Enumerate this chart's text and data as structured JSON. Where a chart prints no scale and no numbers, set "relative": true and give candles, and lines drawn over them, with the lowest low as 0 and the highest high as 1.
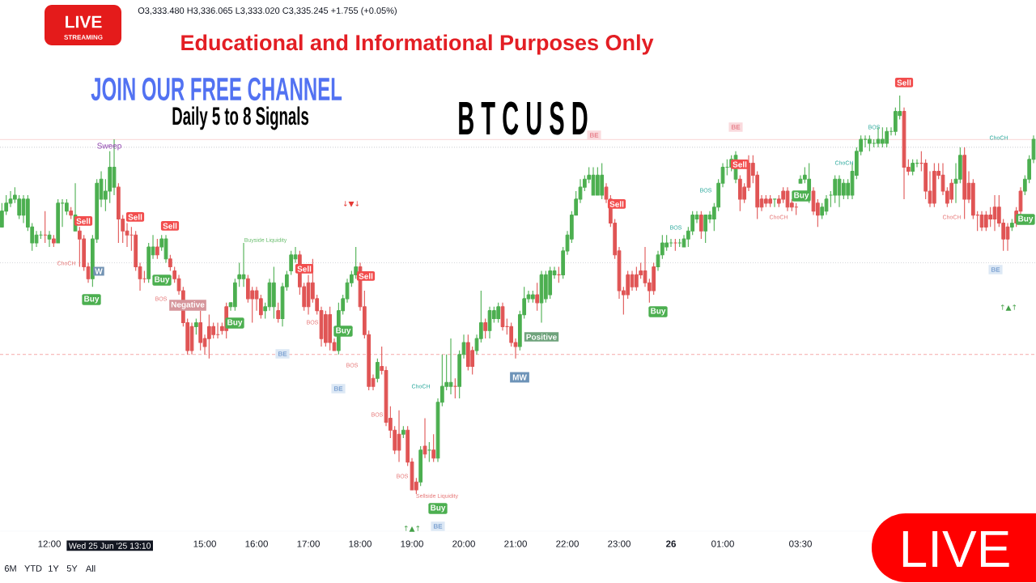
{
  "chart_data": {
    "type": "candlestick",
    "title": "BTCUSD",
    "relative": true,
    "categories": [
      null,
      null,
      null,
      null,
      null,
      null,
      null,
      null,
      null,
      null,
      null,
      "12:00",
      null,
      null,
      null,
      null,
      null,
      null,
      null,
      null,
      null,
      null,
      null,
      null,
      null,
      "Wed 25 Jun '25 13:10",
      null,
      null,
      null,
      null,
      null,
      null,
      null,
      null,
      null,
      null,
      null,
      null,
      null,
      null,
      null,
      null,
      null,
      null,
      null,
      null,
      null,
      "15:00",
      null,
      null,
      null,
      null,
      null,
      null,
      null,
      null,
      null,
      null,
      null,
      "16:00",
      null,
      null,
      null,
      null,
      null,
      null,
      null,
      null,
      null,
      null,
      null,
      "17:00",
      null,
      null,
      null,
      null,
      null,
      null,
      null,
      null,
      null,
      null,
      null,
      "18:00",
      null,
      null,
      null,
      null,
      null,
      null,
      null,
      null,
      null,
      null,
      null,
      "19:00",
      null,
      null,
      null,
      null,
      null,
      null,
      null,
      null,
      null,
      null,
      null,
      "20:00",
      null,
      null,
      null,
      null,
      null,
      null,
      null,
      null,
      null,
      null,
      null,
      "21:00",
      null,
      null,
      null,
      null,
      null,
      null,
      null,
      null,
      null,
      null,
      null,
      "22:00",
      null,
      null,
      null,
      null,
      null,
      null,
      null,
      null,
      null,
      null,
      null,
      "23:00",
      null,
      null,
      null,
      null,
      null,
      null,
      null,
      null,
      null,
      null,
      null,
      "26",
      null,
      null,
      null,
      null,
      null,
      null,
      null,
      null,
      null,
      null,
      null,
      "01:00",
      null,
      null,
      null,
      null,
      null,
      null,
      null,
      null,
      null,
      null,
      null,
      null,
      null,
      null,
      null,
      null,
      null,
      "03:30",
      null,
      null,
      null,
      null,
      null,
      null,
      null,
      null,
      null,
      null,
      null,
      null,
      null,
      null,
      null,
      null,
      null,
      null,
      null,
      null,
      null,
      null,
      null,
      null,
      null,
      null,
      null,
      null,
      null,
      null,
      null,
      null,
      null,
      null,
      null,
      null,
      null,
      null,
      null,
      null,
      null,
      null,
      null,
      null,
      null,
      null,
      null,
      null,
      null,
      null,
      null,
      null,
      null,
      null
    ],
    "ohlc": [
      [
        0.67,
        0.73,
        0.67,
        0.71
      ],
      [
        0.71,
        0.75,
        0.7,
        0.73
      ],
      [
        0.73,
        0.76,
        0.72,
        0.74
      ],
      [
        0.74,
        0.77,
        0.73,
        0.75
      ],
      [
        0.7,
        0.75,
        0.69,
        0.74
      ],
      [
        0.7,
        0.75,
        0.68,
        0.74
      ],
      [
        0.67,
        0.75,
        0.66,
        0.74
      ],
      [
        0.63,
        0.68,
        0.61,
        0.67
      ],
      [
        0.63,
        0.66,
        0.62,
        0.65
      ],
      [
        0.65,
        0.66,
        0.64,
        0.65
      ],
      [
        0.65,
        0.71,
        0.63,
        0.65
      ],
      [
        0.64,
        0.66,
        0.62,
        0.65
      ],
      [
        0.64,
        0.65,
        0.62,
        0.63
      ],
      [
        0.63,
        0.74,
        0.63,
        0.73
      ],
      [
        0.73,
        0.74,
        0.67,
        0.73
      ],
      [
        0.71,
        0.74,
        0.7,
        0.73
      ],
      [
        0.71,
        0.72,
        0.69,
        0.7
      ],
      [
        0.66,
        0.78,
        0.66,
        0.7
      ],
      [
        0.66,
        0.67,
        0.57,
        0.64
      ],
      [
        0.64,
        0.65,
        0.56,
        0.57
      ],
      [
        0.57,
        0.58,
        0.53,
        0.54
      ],
      [
        0.54,
        0.65,
        0.52,
        0.64
      ],
      [
        0.64,
        0.79,
        0.63,
        0.78
      ],
      [
        0.74,
        0.81,
        0.72,
        0.79
      ],
      [
        0.74,
        0.79,
        0.71,
        0.76
      ],
      [
        0.76,
        0.86,
        0.73,
        0.82
      ],
      [
        0.77,
        0.89,
        0.75,
        0.82
      ],
      [
        0.77,
        0.78,
        0.63,
        0.69
      ],
      [
        0.69,
        0.7,
        0.63,
        0.66
      ],
      [
        0.66,
        0.68,
        0.62,
        0.65
      ],
      [
        0.65,
        0.67,
        0.61,
        0.65
      ],
      [
        0.65,
        0.66,
        0.56,
        0.57
      ],
      [
        0.57,
        0.58,
        0.51,
        0.54
      ],
      [
        0.54,
        0.56,
        0.53,
        0.54
      ],
      [
        0.54,
        0.63,
        0.53,
        0.62
      ],
      [
        0.6,
        0.65,
        0.59,
        0.62
      ],
      [
        0.62,
        0.64,
        0.59,
        0.6
      ],
      [
        0.62,
        0.65,
        0.61,
        0.64
      ],
      [
        0.59,
        0.65,
        0.58,
        0.64
      ],
      [
        0.59,
        0.6,
        0.56,
        0.57
      ],
      [
        0.56,
        0.57,
        0.53,
        0.54
      ],
      [
        0.54,
        0.55,
        0.5,
        0.51
      ],
      [
        0.51,
        0.52,
        0.42,
        0.43
      ],
      [
        0.43,
        0.44,
        0.35,
        0.36
      ],
      [
        0.42,
        0.43,
        0.35,
        0.36
      ],
      [
        0.42,
        0.44,
        0.4,
        0.43
      ],
      [
        0.43,
        0.46,
        0.36,
        0.38
      ],
      [
        0.39,
        0.4,
        0.35,
        0.37
      ],
      [
        0.42,
        0.45,
        0.34,
        0.39
      ],
      [
        0.42,
        0.43,
        0.39,
        0.4
      ],
      [
        0.4,
        0.43,
        0.39,
        0.4
      ],
      [
        0.42,
        0.43,
        0.4,
        0.41
      ],
      [
        0.47,
        0.48,
        0.39,
        0.41
      ],
      [
        0.47,
        0.48,
        0.46,
        0.48
      ],
      [
        0.47,
        0.54,
        0.46,
        0.53
      ],
      [
        0.54,
        0.58,
        0.52,
        0.55
      ],
      [
        0.54,
        0.63,
        0.52,
        0.55
      ],
      [
        0.54,
        0.55,
        0.48,
        0.49
      ],
      [
        0.51,
        0.52,
        0.43,
        0.49
      ],
      [
        0.51,
        0.52,
        0.46,
        0.49
      ],
      [
        0.49,
        0.5,
        0.44,
        0.45
      ],
      [
        0.46,
        0.48,
        0.44,
        0.47
      ],
      [
        0.47,
        0.54,
        0.46,
        0.53
      ],
      [
        0.47,
        0.57,
        0.44,
        0.53
      ],
      [
        0.46,
        0.48,
        0.43,
        0.44
      ],
      [
        0.44,
        0.53,
        0.42,
        0.52
      ],
      [
        0.52,
        0.56,
        0.51,
        0.55
      ],
      [
        0.56,
        0.61,
        0.55,
        0.6
      ],
      [
        0.59,
        0.62,
        0.58,
        0.6
      ],
      [
        0.6,
        0.61,
        0.5,
        0.52
      ],
      [
        0.52,
        0.53,
        0.46,
        0.47
      ],
      [
        0.53,
        0.55,
        0.45,
        0.47
      ],
      [
        0.53,
        0.59,
        0.48,
        0.49
      ],
      [
        0.49,
        0.5,
        0.45,
        0.46
      ],
      [
        0.46,
        0.47,
        0.37,
        0.39
      ],
      [
        0.45,
        0.46,
        0.37,
        0.38
      ],
      [
        0.45,
        0.47,
        0.36,
        0.38
      ],
      [
        0.38,
        0.39,
        0.36,
        0.36
      ],
      [
        0.36,
        0.48,
        0.35,
        0.46
      ],
      [
        0.46,
        0.5,
        0.45,
        0.49
      ],
      [
        0.49,
        0.54,
        0.48,
        0.53
      ],
      [
        0.53,
        0.56,
        0.52,
        0.55
      ],
      [
        0.55,
        0.62,
        0.54,
        0.57
      ],
      [
        0.57,
        0.58,
        0.46,
        0.47
      ],
      [
        0.47,
        0.51,
        0.39,
        0.4
      ],
      [
        0.4,
        0.41,
        0.26,
        0.27
      ],
      [
        0.29,
        0.3,
        0.26,
        0.27
      ],
      [
        0.29,
        0.34,
        0.28,
        0.33
      ],
      [
        0.32,
        0.37,
        0.3,
        0.31
      ],
      [
        0.31,
        0.32,
        0.17,
        0.18
      ],
      [
        0.19,
        0.22,
        0.14,
        0.16
      ],
      [
        0.16,
        0.17,
        0.1,
        0.11
      ],
      [
        0.15,
        0.21,
        0.08,
        0.11
      ],
      [
        0.15,
        0.17,
        0.14,
        0.16
      ],
      [
        0.16,
        0.17,
        0.07,
        0.08
      ],
      [
        0.08,
        0.09,
        0.01,
        0.01
      ],
      [
        0.03,
        0.04,
        0,
        0.01
      ],
      [
        0.03,
        0.12,
        0.02,
        0.11
      ],
      [
        0.12,
        0.19,
        0.09,
        0.1
      ],
      [
        0.11,
        0.13,
        0.08,
        0.11
      ],
      [
        0.11,
        0.15,
        0.08,
        0.09
      ],
      [
        0.09,
        0.24,
        0.08,
        0.23
      ],
      [
        0.23,
        0.35,
        0.22,
        0.27
      ],
      [
        0.27,
        0.35,
        0.26,
        0.28
      ],
      [
        0.27,
        0.39,
        0.25,
        0.28
      ],
      [
        0.27,
        0.29,
        0.24,
        0.27
      ],
      [
        0.27,
        0.36,
        0.24,
        0.35
      ],
      [
        0.35,
        0.4,
        0.34,
        0.38
      ],
      [
        0.38,
        0.4,
        0.31,
        0.32
      ],
      [
        0.36,
        0.37,
        0.3,
        0.32
      ],
      [
        0.36,
        0.4,
        0.35,
        0.39
      ],
      [
        0.39,
        0.51,
        0.38,
        0.43
      ],
      [
        0.43,
        0.44,
        0.39,
        0.41
      ],
      [
        0.41,
        0.47,
        0.39,
        0.46
      ],
      [
        0.44,
        0.47,
        0.43,
        0.46
      ],
      [
        0.44,
        0.48,
        0.43,
        0.47
      ],
      [
        0.47,
        0.48,
        0.41,
        0.42
      ],
      [
        0.42,
        0.44,
        0.4,
        0.42
      ],
      [
        0.42,
        0.43,
        0.37,
        0.38
      ],
      [
        0.38,
        0.39,
        0.34,
        0.37
      ],
      [
        0.37,
        0.46,
        0.36,
        0.45
      ],
      [
        0.45,
        0.52,
        0.44,
        0.49
      ],
      [
        0.49,
        0.51,
        0.48,
        0.5
      ],
      [
        0.49,
        0.51,
        0.48,
        0.5
      ],
      [
        0.5,
        0.53,
        0.46,
        0.48
      ],
      [
        0.48,
        0.56,
        0.43,
        0.55
      ],
      [
        0.49,
        0.56,
        0.48,
        0.55
      ],
      [
        0.5,
        0.57,
        0.49,
        0.56
      ],
      [
        0.55,
        0.57,
        0.54,
        0.56
      ],
      [
        0.55,
        0.57,
        0.53,
        0.55
      ],
      [
        0.55,
        0.62,
        0.54,
        0.61
      ],
      [
        0.61,
        0.66,
        0.6,
        0.65
      ],
      [
        0.64,
        0.71,
        0.63,
        0.7
      ],
      [
        0.7,
        0.76,
        0.7,
        0.74
      ],
      [
        0.74,
        0.79,
        0.73,
        0.77
      ],
      [
        0.77,
        0.8,
        0.76,
        0.79
      ],
      [
        0.79,
        0.82,
        0.78,
        0.8
      ],
      [
        0.75,
        0.82,
        0.75,
        0.8
      ],
      [
        0.75,
        0.82,
        0.75,
        0.8
      ],
      [
        0.75,
        0.83,
        0.74,
        0.8
      ],
      [
        0.77,
        0.78,
        0.73,
        0.74
      ],
      [
        0.74,
        0.75,
        0.67,
        0.68
      ],
      [
        0.68,
        0.69,
        0.59,
        0.6
      ],
      [
        0.61,
        0.62,
        0.49,
        0.51
      ],
      [
        0.51,
        0.52,
        0.45,
        0.5
      ],
      [
        0.55,
        0.56,
        0.49,
        0.5
      ],
      [
        0.55,
        0.56,
        0.51,
        0.52
      ],
      [
        0.55,
        0.57,
        0.51,
        0.52
      ],
      [
        0.56,
        0.58,
        0.54,
        0.55
      ],
      [
        0.56,
        0.62,
        0.52,
        0.53
      ],
      [
        0.53,
        0.54,
        0.48,
        0.51
      ],
      [
        0.57,
        0.58,
        0.5,
        0.51
      ],
      [
        0.57,
        0.61,
        0.56,
        0.6
      ],
      [
        0.6,
        0.65,
        0.59,
        0.63
      ],
      [
        0.62,
        0.65,
        0.61,
        0.63
      ],
      [
        0.63,
        0.64,
        0.62,
        0.63
      ],
      [
        0.63,
        0.64,
        0.61,
        0.63
      ],
      [
        0.63,
        0.64,
        0.62,
        0.63
      ],
      [
        0.62,
        0.65,
        0.62,
        0.64
      ],
      [
        0.64,
        0.67,
        0.62,
        0.66
      ],
      [
        0.66,
        0.71,
        0.65,
        0.7
      ],
      [
        0.69,
        0.71,
        0.68,
        0.7
      ],
      [
        0.7,
        0.71,
        0.64,
        0.66
      ],
      [
        0.66,
        0.7,
        0.63,
        0.7
      ],
      [
        0.69,
        0.71,
        0.68,
        0.7
      ],
      [
        0.69,
        0.73,
        0.66,
        0.72
      ],
      [
        0.72,
        0.79,
        0.71,
        0.78
      ],
      [
        0.78,
        0.83,
        0.77,
        0.82
      ],
      [
        0.82,
        0.84,
        0.8,
        0.82
      ],
      [
        0.82,
        0.85,
        0.81,
        0.84
      ],
      [
        0.79,
        0.86,
        0.78,
        0.85
      ],
      [
        0.79,
        0.8,
        0.71,
        0.74
      ],
      [
        0.77,
        0.78,
        0.73,
        0.74
      ],
      [
        0.83,
        0.85,
        0.76,
        0.77
      ],
      [
        0.83,
        0.85,
        0.78,
        0.8
      ],
      [
        0.8,
        0.81,
        0.69,
        0.72
      ],
      [
        0.74,
        0.75,
        0.71,
        0.72
      ],
      [
        0.74,
        0.75,
        0.72,
        0.73
      ],
      [
        0.74,
        0.75,
        0.72,
        0.73
      ],
      [
        0.74,
        0.74,
        0.72,
        0.74
      ],
      [
        0.74,
        0.75,
        0.72,
        0.73
      ],
      [
        0.76,
        0.77,
        0.73,
        0.74
      ],
      [
        0.76,
        0.77,
        0.71,
        0.72
      ],
      [
        0.73,
        0.74,
        0.71,
        0.72
      ],
      [
        0.72,
        0.73,
        0.7,
        0.72
      ],
      [
        0.78,
        0.8,
        0.78,
        0.79
      ],
      [
        0.79,
        0.82,
        0.78,
        0.8
      ],
      [
        0.76,
        0.83,
        0.73,
        0.79
      ],
      [
        0.76,
        0.77,
        0.7,
        0.71
      ],
      [
        0.73,
        0.74,
        0.67,
        0.7
      ],
      [
        0.7,
        0.73,
        0.69,
        0.72
      ],
      [
        0.71,
        0.75,
        0.7,
        0.74
      ],
      [
        0.75,
        0.76,
        0.72,
        0.75
      ],
      [
        0.75,
        0.8,
        0.73,
        0.79
      ],
      [
        0.75,
        0.8,
        0.72,
        0.79
      ],
      [
        0.75,
        0.79,
        0.74,
        0.78
      ],
      [
        0.75,
        0.79,
        0.74,
        0.78
      ],
      [
        0.75,
        0.83,
        0.74,
        0.81
      ],
      [
        0.8,
        0.87,
        0.79,
        0.86
      ],
      [
        0.86,
        0.9,
        0.85,
        0.89
      ],
      [
        0.89,
        0.9,
        0.87,
        0.89
      ],
      [
        0.88,
        0.9,
        0.86,
        0.89
      ],
      [
        0.88,
        0.89,
        0.87,
        0.88
      ],
      [
        0.88,
        0.92,
        0.87,
        0.89
      ],
      [
        0.88,
        0.92,
        0.87,
        0.89
      ],
      [
        0.88,
        0.92,
        0.87,
        0.91
      ],
      [
        0.91,
        0.92,
        0.9,
        0.91
      ],
      [
        0.91,
        0.97,
        0.9,
        0.96
      ],
      [
        0.95,
        1,
        0.94,
        0.96
      ],
      [
        0.96,
        0.97,
        0.74,
        0.82
      ],
      [
        0.82,
        0.84,
        0.8,
        0.81
      ],
      [
        0.81,
        0.84,
        0.8,
        0.83
      ],
      [
        0.83,
        0.84,
        0.82,
        0.83
      ],
      [
        0.83,
        0.86,
        0.81,
        0.83
      ],
      [
        0.83,
        0.84,
        0.74,
        0.76
      ],
      [
        0.76,
        0.81,
        0.72,
        0.73
      ],
      [
        0.81,
        0.83,
        0.72,
        0.73
      ],
      [
        0.81,
        0.83,
        0.79,
        0.8
      ],
      [
        0.8,
        0.83,
        0.75,
        0.76
      ],
      [
        0.76,
        0.77,
        0.72,
        0.73
      ],
      [
        0.78,
        0.79,
        0.73,
        0.74
      ],
      [
        0.78,
        0.83,
        0.73,
        0.79
      ],
      [
        0.79,
        0.87,
        0.78,
        0.85
      ],
      [
        0.85,
        0.87,
        0.69,
        0.74
      ],
      [
        0.78,
        0.81,
        0.73,
        0.74
      ],
      [
        0.78,
        0.79,
        0.69,
        0.7
      ],
      [
        0.7,
        0.71,
        0.66,
        0.7
      ],
      [
        0.7,
        0.71,
        0.66,
        0.67
      ],
      [
        0.7,
        0.71,
        0.66,
        0.67
      ],
      [
        0.7,
        0.72,
        0.67,
        0.69
      ],
      [
        0.72,
        0.75,
        0.66,
        0.69
      ],
      [
        0.72,
        0.75,
        0.67,
        0.68
      ],
      [
        0.68,
        0.69,
        0.61,
        0.64
      ],
      [
        0.67,
        0.68,
        0.61,
        0.64
      ],
      [
        0.67,
        0.69,
        0.66,
        0.68
      ],
      [
        0.71,
        0.72,
        0.67,
        0.68
      ],
      [
        0.76,
        0.77,
        0.7,
        0.71
      ],
      [
        0.76,
        0.8,
        0.75,
        0.79
      ],
      [
        0.79,
        0.85,
        0.78,
        0.84
      ],
      [
        0.84,
        0.9,
        0.83,
        0.89
      ]
    ],
    "colors": [
      "#4caf50",
      "#4caf50",
      "#4caf50",
      "#4caf50",
      "#4caf50",
      "#4caf50",
      "#4caf50",
      "#4caf50",
      "#4caf50",
      "#4caf50",
      "#e05555",
      "#4caf50",
      "#e05555",
      "#4caf50",
      "#4caf50",
      "#4caf50",
      "#e05555",
      "#4caf50",
      "#e05555",
      "#e05555",
      "#e05555",
      "#4caf50",
      "#4caf50",
      "#4caf50",
      "#4caf50",
      "#4caf50",
      "#4caf50",
      "#e05555",
      "#e05555",
      "#e05555",
      "#e05555",
      "#e05555",
      "#e05555",
      "#e05555",
      "#4caf50",
      "#4caf50",
      "#e05555",
      "#4caf50",
      "#4caf50",
      "#e05555",
      "#e05555",
      "#e05555",
      "#e05555",
      "#e05555",
      "#e05555",
      "#4caf50",
      "#e05555",
      "#e05555",
      "#e05555",
      "#e05555",
      "#e05555",
      "#e05555",
      "#e05555",
      "#4caf50",
      "#4caf50",
      "#4caf50",
      "#4caf50",
      "#e05555",
      "#e05555",
      "#e05555",
      "#e05555",
      "#4caf50",
      "#4caf50",
      "#4caf50",
      "#e05555",
      "#4caf50",
      "#4caf50",
      "#4caf50",
      "#4caf50",
      "#e05555",
      "#e05555",
      "#e05555",
      "#e05555",
      "#e05555",
      "#e05555",
      "#e05555",
      "#e05555",
      "#e05555",
      "#4caf50",
      "#4caf50",
      "#4caf50",
      "#4caf50",
      "#4caf50",
      "#e05555",
      "#e05555",
      "#e05555",
      "#e05555",
      "#4caf50",
      "#e05555",
      "#e05555",
      "#e05555",
      "#e05555",
      "#e05555",
      "#4caf50",
      "#e05555",
      "#e05555",
      "#e05555",
      "#4caf50",
      "#e05555",
      "#4caf50",
      "#e05555",
      "#4caf50",
      "#4caf50",
      "#4caf50",
      "#4caf50",
      "#e05555",
      "#4caf50",
      "#4caf50",
      "#e05555",
      "#e05555",
      "#4caf50",
      "#4caf50",
      "#e05555",
      "#4caf50",
      "#4caf50",
      "#4caf50",
      "#e05555",
      "#e05555",
      "#e05555",
      "#e05555",
      "#4caf50",
      "#4caf50",
      "#4caf50",
      "#4caf50",
      "#e05555",
      "#4caf50",
      "#4caf50",
      "#4caf50",
      "#4caf50",
      "#e05555",
      "#4caf50",
      "#4caf50",
      "#4caf50",
      "#4caf50",
      "#4caf50",
      "#4caf50",
      "#4caf50",
      "#4caf50",
      "#4caf50",
      "#4caf50",
      "#e05555",
      "#e05555",
      "#e05555",
      "#e05555",
      "#e05555",
      "#e05555",
      "#e05555",
      "#e05555",
      "#e05555",
      "#e05555",
      "#e05555",
      "#e05555",
      "#4caf50",
      "#4caf50",
      "#4caf50",
      "#4caf50",
      "#e05555",
      "#4caf50",
      "#4caf50",
      "#4caf50",
      "#4caf50",
      "#4caf50",
      "#e05555",
      "#4caf50",
      "#4caf50",
      "#4caf50",
      "#4caf50",
      "#4caf50",
      "#4caf50",
      "#4caf50",
      "#4caf50",
      "#e05555",
      "#e05555",
      "#e05555",
      "#e05555",
      "#e05555",
      "#e05555",
      "#e05555",
      "#e05555",
      "#4caf50",
      "#e05555",
      "#e05555",
      "#e05555",
      "#e05555",
      "#e05555",
      "#4caf50",
      "#4caf50",
      "#4caf50",
      "#e05555",
      "#e05555",
      "#4caf50",
      "#4caf50",
      "#4caf50",
      "#4caf50",
      "#4caf50",
      "#4caf50",
      "#4caf50",
      "#4caf50",
      "#4caf50",
      "#4caf50",
      "#4caf50",
      "#4caf50",
      "#4caf50",
      "#4caf50",
      "#4caf50",
      "#4caf50",
      "#4caf50",
      "#4caf50",
      "#4caf50",
      "#e05555",
      "#e05555",
      "#4caf50",
      "#4caf50",
      "#e05555",
      "#e05555",
      "#e05555",
      "#e05555",
      "#e05555",
      "#e05555",
      "#e05555",
      "#e05555",
      "#4caf50",
      "#4caf50",
      "#e05555",
      "#e05555",
      "#e05555",
      "#e05555",
      "#e05555",
      "#e05555",
      "#e05555",
      "#e05555",
      "#e05555",
      "#e05555",
      "#e05555",
      "#4caf50",
      "#e05555",
      "#e05555",
      "#4caf50",
      "#4caf50",
      "#4caf50"
    ],
    "ref_lines": [
      {
        "axis": "y",
        "value": 0.89,
        "color": "#f3a0a0",
        "line_style": "solid"
      },
      {
        "axis": "y",
        "value": 0.87,
        "color": "#b2b5be",
        "line_style": "dotted"
      },
      {
        "axis": "y",
        "value": 0.58,
        "color": "#b2b5be",
        "line_style": "dotted"
      },
      {
        "axis": "y",
        "value": 0.35,
        "color": "#f08a8a",
        "line_style": "dashed"
      }
    ],
    "annotations": [
      "LIVE",
      "STREAMING",
      "O3,333.480 H3,336.065 L3,333.020 C3,335.245 +1.755 (+0.05%)",
      "Educational and Informational Purposes Only",
      "JOIN OUR FREE CHANNEL",
      "Daily 5 to 8 Signals",
      "6M",
      "YTD",
      "1Y",
      "5Y",
      "All",
      "LIVE",
      "Sweep",
      "Sell",
      "ChoCH",
      "W",
      "Buy",
      "Sell",
      "Sell",
      "Buy",
      "BOS",
      "Negative",
      "Buy",
      "Buyside Liquidity",
      "BE",
      "Sell",
      "BOS",
      "Buy",
      "Sell",
      "↓▼↓",
      "BE",
      "BOS",
      "ChoCH",
      "BOS",
      "BOS",
      "Sellside Liquidity",
      "Buy",
      "↑▲↑",
      "BE",
      "Positive",
      "MW",
      "BE",
      "Sell",
      "Buy",
      "BOS",
      "BOS",
      "BE",
      "Sell",
      "ChoCH",
      "Buy",
      "ChoCH",
      "BOS",
      "Sell",
      "ChoCH",
      "ChoCH",
      "Buy",
      "BE",
      "↑▲↑"
    ]
  }
}
